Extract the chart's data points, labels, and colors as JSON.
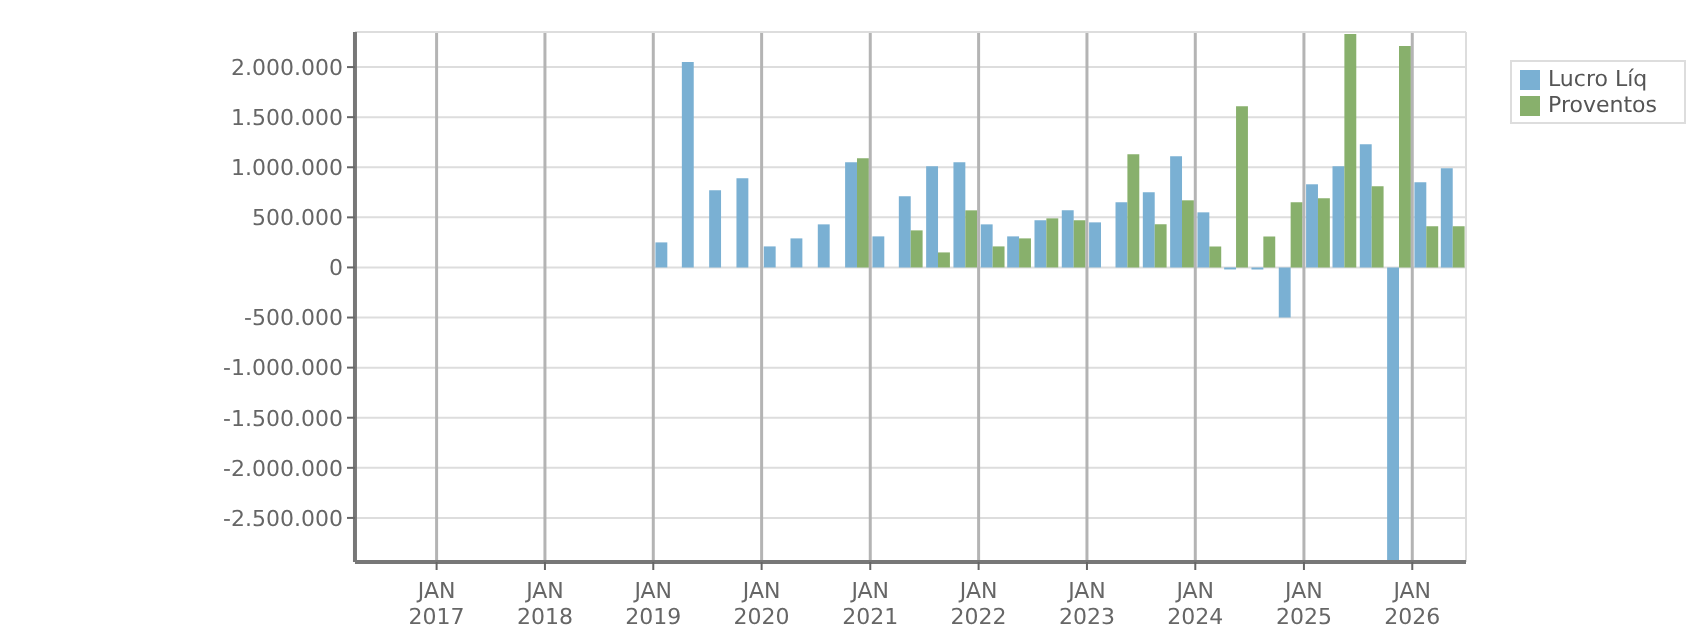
{
  "chart_data": {
    "type": "bar",
    "x": [
      "2019-02-15",
      "2019-05-15",
      "2019-08-15",
      "2019-11-15",
      "2020-02-15",
      "2020-05-15",
      "2020-08-15",
      "2020-11-15",
      "2021-02-15",
      "2021-05-15",
      "2021-08-15",
      "2021-11-15",
      "2022-02-15",
      "2022-05-15",
      "2022-08-15",
      "2022-11-15",
      "2023-02-15",
      "2023-05-15",
      "2023-08-15",
      "2023-11-15",
      "2024-02-15",
      "2024-05-15",
      "2024-08-15",
      "2024-11-15",
      "2025-02-15",
      "2025-05-15",
      "2025-08-15",
      "2025-11-15",
      "2026-02-15",
      "2026-05-15"
    ],
    "series": [
      {
        "name": "Lucro Líq",
        "color": "#7ab0d3",
        "values": [
          250000,
          2050000,
          770000,
          890000,
          210000,
          290000,
          430000,
          1050000,
          310000,
          710000,
          1010000,
          1050000,
          430000,
          310000,
          470000,
          570000,
          450000,
          650000,
          750000,
          1110000,
          550000,
          -20000,
          -20000,
          -500000,
          830000,
          1010000,
          1230000,
          -2930000,
          850000,
          990000
        ]
      },
      {
        "name": "Proventos",
        "color": "#88b06c",
        "values": [
          0,
          0,
          0,
          0,
          0,
          0,
          0,
          1090000,
          0,
          370000,
          150000,
          570000,
          210000,
          290000,
          490000,
          470000,
          0,
          1130000,
          430000,
          670000,
          210000,
          1610000,
          310000,
          650000,
          690000,
          2330000,
          810000,
          2210000,
          410000,
          410000
        ]
      }
    ],
    "xlim": [
      "2016-04",
      "2026-07"
    ],
    "xticks": [
      {
        "value": "2017-01",
        "label": "JAN\n2017"
      },
      {
        "value": "2018-01",
        "label": "JAN\n2018"
      },
      {
        "value": "2019-01",
        "label": "JAN\n2019"
      },
      {
        "value": "2020-01",
        "label": "JAN\n2020"
      },
      {
        "value": "2021-01",
        "label": "JAN\n2021"
      },
      {
        "value": "2022-01",
        "label": "JAN\n2022"
      },
      {
        "value": "2023-01",
        "label": "JAN\n2023"
      },
      {
        "value": "2024-01",
        "label": "JAN\n2024"
      },
      {
        "value": "2025-01",
        "label": "JAN\n2025"
      },
      {
        "value": "2026-01",
        "label": "JAN\n2026"
      }
    ],
    "ylim": [
      -2940000,
      2350000
    ],
    "yticks": [
      {
        "value": -2500000,
        "label": "-2.500.000"
      },
      {
        "value": -2000000,
        "label": "-2.000.000"
      },
      {
        "value": -1500000,
        "label": "-1.500.000"
      },
      {
        "value": -1000000,
        "label": "-1.000.000"
      },
      {
        "value": -500000,
        "label": "-500.000"
      },
      {
        "value": 0,
        "label": "0"
      },
      {
        "value": 500000,
        "label": "500.000"
      },
      {
        "value": 1000000,
        "label": "1.000.000"
      },
      {
        "value": 1500000,
        "label": "1.500.000"
      },
      {
        "value": 2000000,
        "label": "2.000.000"
      }
    ],
    "grid": true,
    "legend": "top right"
  }
}
